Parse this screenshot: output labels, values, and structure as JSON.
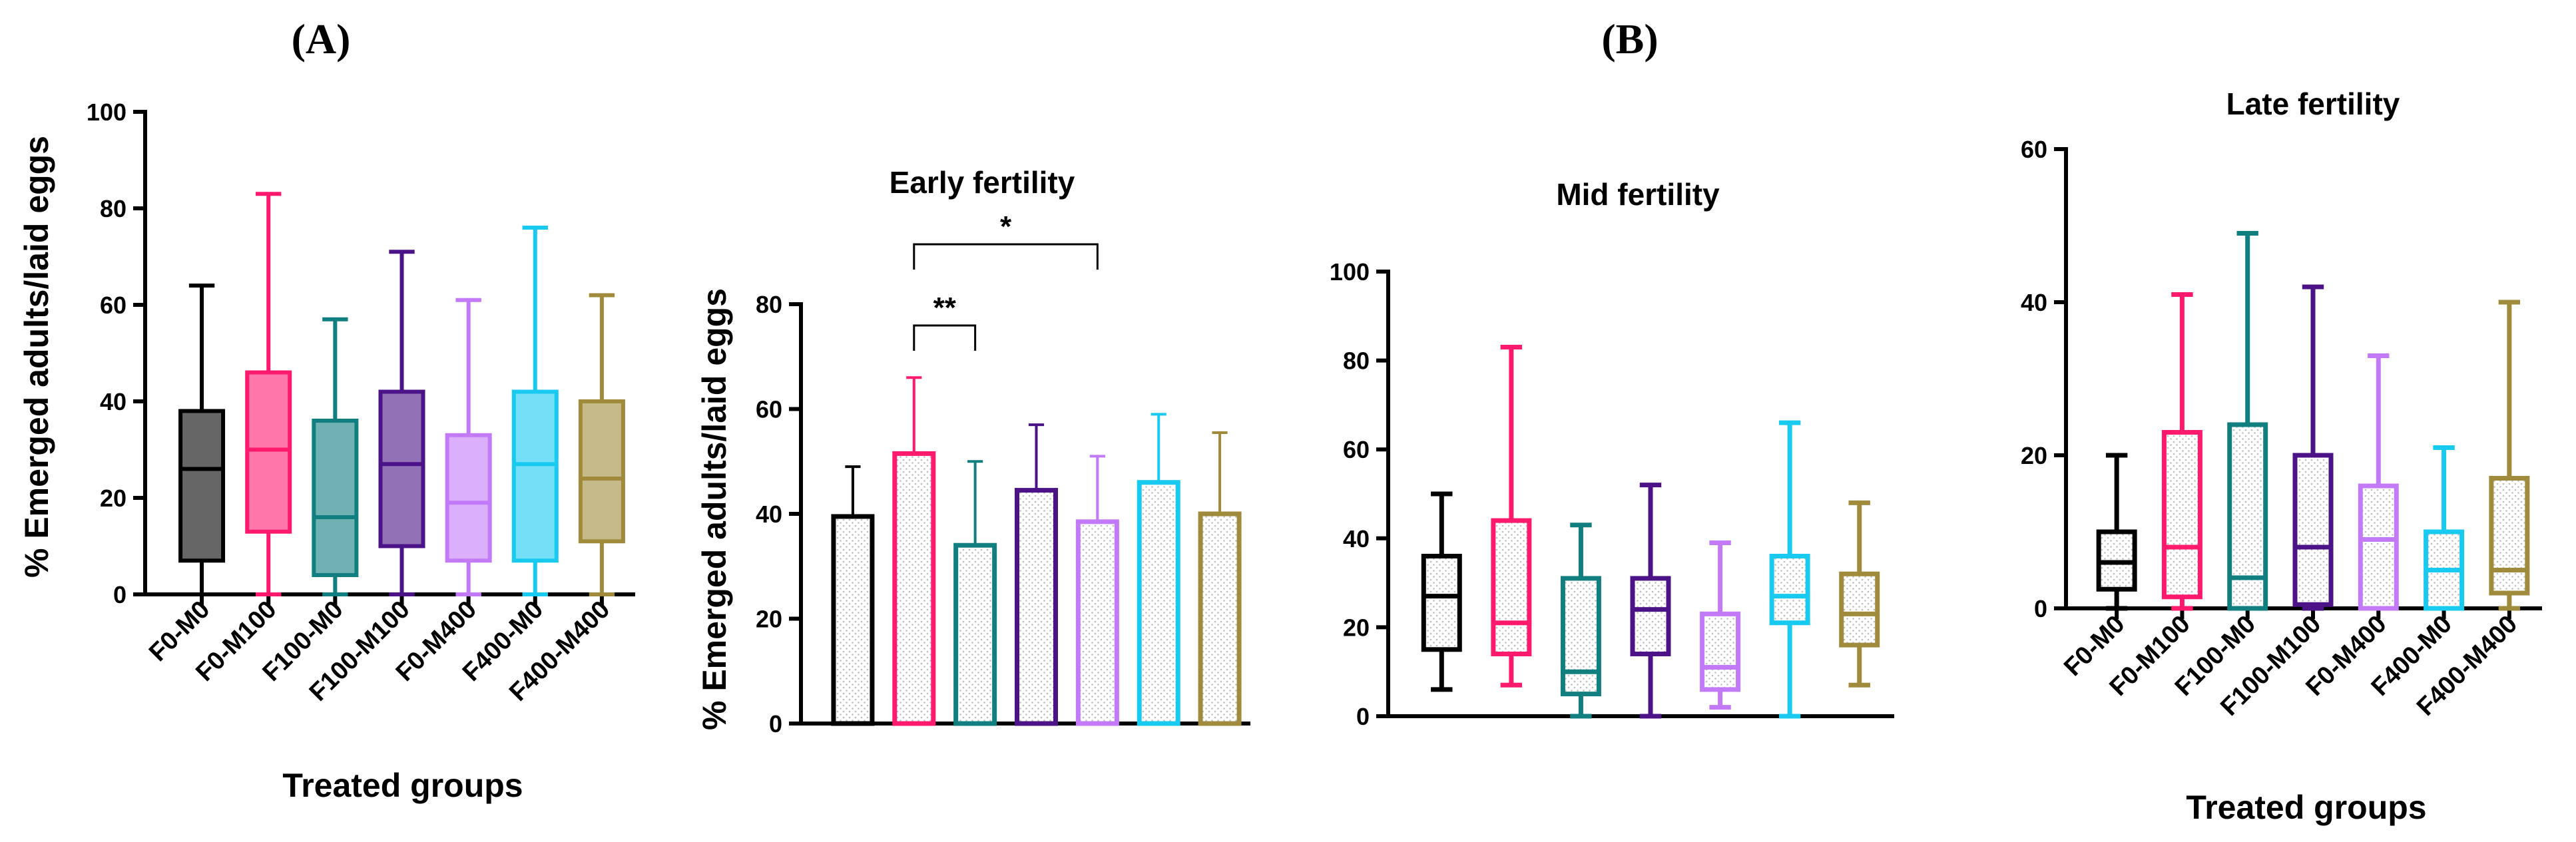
{
  "panels": {
    "a": "(A)",
    "b": "(B)"
  },
  "colors": {
    "F0-M0": "#000000",
    "F0-M100": "#ff1a6e",
    "F100-M0": "#117f80",
    "F100-M100": "#4b1387",
    "F0-M400": "#c37af9",
    "F400-M0": "#18c9f0",
    "F400-M400": "#a08a3c"
  },
  "chart_data": [
    {
      "id": "overall",
      "type": "boxplot",
      "title": "",
      "xlabel": "Treated groups",
      "ylabel": "% Emerged adults/laid eggs",
      "ylim": [
        0,
        100
      ],
      "yticks": [
        0,
        20,
        40,
        60,
        80,
        100
      ],
      "categories": [
        "F0-M0",
        "F0-M100",
        "F100-M0",
        "F100-M100",
        "F0-M400",
        "F400-M0",
        "F400-M400"
      ],
      "boxes": [
        {
          "min": 0,
          "q1": 7,
          "median": 26,
          "q3": 38,
          "max": 64
        },
        {
          "min": 0,
          "q1": 13,
          "median": 30,
          "q3": 46,
          "max": 83
        },
        {
          "min": 0,
          "q1": 4,
          "median": 16,
          "q3": 36,
          "max": 57
        },
        {
          "min": 0,
          "q1": 10,
          "median": 27,
          "q3": 42,
          "max": 71
        },
        {
          "min": 0,
          "q1": 7,
          "median": 19,
          "q3": 33,
          "max": 61
        },
        {
          "min": 0,
          "q1": 7,
          "median": 27,
          "q3": 42,
          "max": 76
        },
        {
          "min": 0,
          "q1": 11,
          "median": 24,
          "q3": 40,
          "max": 62
        }
      ]
    },
    {
      "id": "early",
      "type": "bar",
      "title": "Early fertility",
      "xlabel": "",
      "ylabel": "% Emerged adults/laid eggs",
      "ylim": [
        0,
        80
      ],
      "yticks": [
        0,
        20,
        40,
        60,
        80
      ],
      "categories": [
        "F0-M0",
        "F0-M100",
        "F100-M0",
        "F100-M100",
        "F0-M400",
        "F400-M0",
        "F400-M400"
      ],
      "values": [
        39.5,
        51.5,
        34,
        44.5,
        38.5,
        46,
        40
      ],
      "errors": [
        49,
        66,
        50,
        57,
        51,
        59,
        55.5
      ],
      "significance": [
        {
          "from": 1,
          "to": 2,
          "label": "**"
        },
        {
          "from": 1,
          "to": 4,
          "label": "*"
        }
      ]
    },
    {
      "id": "mid",
      "type": "boxplot",
      "title": "Mid fertility",
      "xlabel": "",
      "ylabel": "",
      "ylim": [
        0,
        100
      ],
      "yticks": [
        0,
        20,
        40,
        60,
        80,
        100
      ],
      "categories": [
        "F0-M0",
        "F0-M100",
        "F100-M0",
        "F100-M100",
        "F0-M400",
        "F400-M0",
        "F400-M400"
      ],
      "boxes": [
        {
          "min": 6,
          "q1": 15,
          "median": 27,
          "q3": 36,
          "max": 50
        },
        {
          "min": 7,
          "q1": 14,
          "median": 21,
          "q3": 44,
          "max": 83
        },
        {
          "min": 0,
          "q1": 5,
          "median": 10,
          "q3": 31,
          "max": 43
        },
        {
          "min": 0,
          "q1": 14,
          "median": 24,
          "q3": 31,
          "max": 52
        },
        {
          "min": 2,
          "q1": 6,
          "median": 11,
          "q3": 23,
          "max": 39
        },
        {
          "min": 0,
          "q1": 21,
          "median": 27,
          "q3": 36,
          "max": 66
        },
        {
          "min": 7,
          "q1": 16,
          "median": 23,
          "q3": 32,
          "max": 48
        }
      ]
    },
    {
      "id": "late",
      "type": "boxplot",
      "title": "Late fertility",
      "xlabel": "Treated groups",
      "ylabel": "",
      "ylim": [
        0,
        60
      ],
      "yticks": [
        0,
        20,
        40,
        60
      ],
      "categories": [
        "F0-M0",
        "F0-M100",
        "F100-M0",
        "F100-M100",
        "F0-M400",
        "F400-M0",
        "F400-M400"
      ],
      "boxes": [
        {
          "min": 0,
          "q1": 2.5,
          "median": 6,
          "q3": 10,
          "max": 20
        },
        {
          "min": 0,
          "q1": 1.5,
          "median": 8,
          "q3": 23,
          "max": 41
        },
        {
          "min": 0,
          "q1": 0,
          "median": 4,
          "q3": 24,
          "max": 49
        },
        {
          "min": 0,
          "q1": 0.5,
          "median": 8,
          "q3": 20,
          "max": 42
        },
        {
          "min": 0,
          "q1": 0,
          "median": 9,
          "q3": 16,
          "max": 33
        },
        {
          "min": 0,
          "q1": 0,
          "median": 5,
          "q3": 10,
          "max": 21
        },
        {
          "min": 0,
          "q1": 2,
          "median": 5,
          "q3": 17,
          "max": 40
        }
      ]
    }
  ]
}
